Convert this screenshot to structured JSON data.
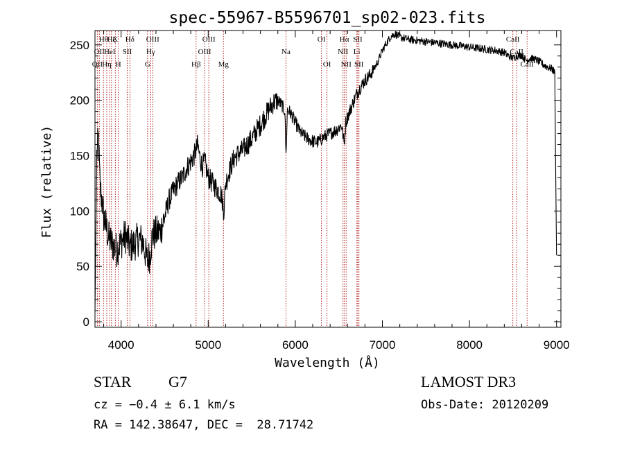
{
  "chart_data": {
    "type": "line",
    "title": "spec-55967-B5596701_sp02-023.fits",
    "xlabel": "Wavelength (Å)",
    "ylabel": "Flux (relative)",
    "xlim": [
      3700,
      9050
    ],
    "ylim": [
      -5,
      263
    ],
    "xticks": [
      4000,
      5000,
      6000,
      7000,
      8000,
      9000
    ],
    "yticks": [
      0,
      50,
      100,
      150,
      200,
      250
    ],
    "grid": false,
    "series": [
      {
        "name": "flux",
        "color": "#000000",
        "x": [
          3700,
          3720,
          3740,
          3760,
          3780,
          3800,
          3830,
          3860,
          3900,
          3950,
          4000,
          4050,
          4100,
          4150,
          4200,
          4250,
          4300,
          4330,
          4360,
          4400,
          4450,
          4500,
          4550,
          4600,
          4650,
          4700,
          4750,
          4800,
          4850,
          4880,
          4900,
          4930,
          4960,
          5000,
          5050,
          5100,
          5150,
          5180,
          5200,
          5250,
          5300,
          5350,
          5400,
          5450,
          5500,
          5550,
          5600,
          5650,
          5700,
          5750,
          5800,
          5850,
          5880,
          5893,
          5910,
          5950,
          6000,
          6050,
          6100,
          6150,
          6200,
          6250,
          6300,
          6350,
          6400,
          6450,
          6500,
          6530,
          6563,
          6580,
          6600,
          6650,
          6700,
          6750,
          6800,
          6850,
          6900,
          6950,
          7000,
          7050,
          7100,
          7150,
          7200,
          7300,
          7400,
          7500,
          7600,
          7700,
          7800,
          7900,
          8000,
          8100,
          8200,
          8300,
          8400,
          8450,
          8500,
          8540,
          8600,
          8650,
          8700,
          8750,
          8800,
          8850,
          8900,
          8950,
          8980,
          8990,
          9000
        ],
        "y": [
          10,
          150,
          165,
          120,
          110,
          95,
          85,
          75,
          70,
          65,
          72,
          78,
          68,
          70,
          75,
          72,
          55,
          60,
          78,
          80,
          82,
          95,
          110,
          118,
          125,
          130,
          138,
          145,
          152,
          160,
          150,
          140,
          145,
          130,
          125,
          120,
          115,
          100,
          125,
          138,
          148,
          152,
          155,
          160,
          165,
          172,
          178,
          185,
          192,
          198,
          200,
          195,
          190,
          150,
          192,
          188,
          180,
          172,
          168,
          165,
          163,
          162,
          165,
          168,
          170,
          172,
          175,
          178,
          160,
          180,
          185,
          195,
          205,
          212,
          218,
          222,
          228,
          235,
          245,
          252,
          258,
          260,
          257,
          255,
          254,
          253,
          252,
          251,
          250,
          249,
          248,
          247,
          246,
          245,
          243,
          240,
          238,
          240,
          241,
          236,
          238,
          237,
          235,
          232,
          230,
          228,
          225,
          135,
          60
        ]
      }
    ],
    "lines": [
      {
        "x": 3727,
        "labels": [
          "OII"
        ],
        "rows": [
          2
        ]
      },
      {
        "x": 3750,
        "labels": [
          "OII"
        ],
        "rows": [
          1
        ]
      },
      {
        "x": 3798,
        "labels": [
          "Hθ"
        ],
        "rows": [
          0
        ]
      },
      {
        "x": 3835,
        "labels": [
          "Hη"
        ],
        "rows": [
          2
        ]
      },
      {
        "x": 3869,
        "labels": [
          "HeI"
        ],
        "rows": [
          1
        ]
      },
      {
        "x": 3889,
        "labels": [
          "Hζ"
        ],
        "rows": [
          0
        ]
      },
      {
        "x": 3934,
        "labels": [
          "K"
        ],
        "rows": [
          0
        ]
      },
      {
        "x": 3969,
        "labels": [
          "H"
        ],
        "rows": [
          2
        ]
      },
      {
        "x": 4070,
        "labels": [
          "SII"
        ],
        "rows": [
          1
        ]
      },
      {
        "x": 4101,
        "labels": [
          "Hδ"
        ],
        "rows": [
          0
        ]
      },
      {
        "x": 4304,
        "labels": [
          "G"
        ],
        "rows": [
          2
        ]
      },
      {
        "x": 4340,
        "labels": [
          "Hγ"
        ],
        "rows": [
          1
        ]
      },
      {
        "x": 4363,
        "labels": [
          "OIII"
        ],
        "rows": [
          0
        ]
      },
      {
        "x": 4861,
        "labels": [
          "Hβ"
        ],
        "rows": [
          2
        ]
      },
      {
        "x": 4959,
        "labels": [
          "OIII"
        ],
        "rows": [
          1
        ]
      },
      {
        "x": 5007,
        "labels": [
          "OIII"
        ],
        "rows": [
          0
        ]
      },
      {
        "x": 5175,
        "labels": [
          "Mg"
        ],
        "rows": [
          2
        ]
      },
      {
        "x": 5893,
        "labels": [
          "Na"
        ],
        "rows": [
          1
        ]
      },
      {
        "x": 6300,
        "labels": [
          "OI"
        ],
        "rows": [
          0
        ]
      },
      {
        "x": 6364,
        "labels": [
          "OI"
        ],
        "rows": [
          2
        ]
      },
      {
        "x": 6548,
        "labels": [
          "NII"
        ],
        "rows": [
          1
        ]
      },
      {
        "x": 6563,
        "labels": [
          "Hα"
        ],
        "rows": [
          0
        ]
      },
      {
        "x": 6584,
        "labels": [
          "NII"
        ],
        "rows": [
          2
        ]
      },
      {
        "x": 6707,
        "labels": [
          "Li"
        ],
        "rows": [
          1
        ]
      },
      {
        "x": 6717,
        "labels": [
          "SII"
        ],
        "rows": [
          0
        ]
      },
      {
        "x": 6731,
        "labels": [
          "SII"
        ],
        "rows": [
          2
        ]
      },
      {
        "x": 8498,
        "labels": [
          "CaII"
        ],
        "rows": [
          0
        ]
      },
      {
        "x": 8542,
        "labels": [
          "CaII"
        ],
        "rows": [
          1
        ]
      },
      {
        "x": 8662,
        "labels": [
          "CaII"
        ],
        "rows": [
          2
        ]
      }
    ]
  },
  "info": {
    "class": "STAR",
    "subclass": "G7",
    "survey": "LAMOST DR3",
    "cz": "cz = −0.4 ± 6.1 km/s",
    "obs_date": "Obs-Date: 20120209",
    "radec": "RA = 142.38647, DEC =  28.71742"
  }
}
